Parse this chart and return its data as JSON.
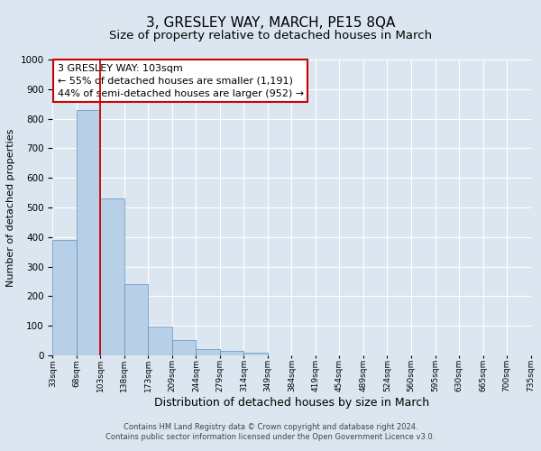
{
  "title": "3, GRESLEY WAY, MARCH, PE15 8QA",
  "subtitle": "Size of property relative to detached houses in March",
  "xlabel": "Distribution of detached houses by size in March",
  "ylabel": "Number of detached properties",
  "bin_labels": [
    "33sqm",
    "68sqm",
    "103sqm",
    "138sqm",
    "173sqm",
    "209sqm",
    "244sqm",
    "279sqm",
    "314sqm",
    "349sqm",
    "384sqm",
    "419sqm",
    "454sqm",
    "489sqm",
    "524sqm",
    "560sqm",
    "595sqm",
    "630sqm",
    "665sqm",
    "700sqm",
    "735sqm"
  ],
  "bar_heights": [
    390,
    830,
    530,
    240,
    97,
    52,
    22,
    14,
    10,
    0,
    0,
    0,
    0,
    0,
    0,
    0,
    0,
    0,
    0,
    0
  ],
  "bar_color": "#b8cfe8",
  "bar_edge_color": "#6090c0",
  "vline_color": "#cc0000",
  "annotation_box_text": "3 GRESLEY WAY: 103sqm\n← 55% of detached houses are smaller (1,191)\n44% of semi-detached houses are larger (952) →",
  "annotation_box_edge_color": "#cc0000",
  "ylim": [
    0,
    1000
  ],
  "yticks": [
    0,
    100,
    200,
    300,
    400,
    500,
    600,
    700,
    800,
    900,
    1000
  ],
  "background_color": "#dce6f0",
  "plot_background": "#dce6f0",
  "footer_line1": "Contains HM Land Registry data © Crown copyright and database right 2024.",
  "footer_line2": "Contains public sector information licensed under the Open Government Licence v3.0.",
  "grid_color": "#ffffff",
  "title_fontsize": 11,
  "subtitle_fontsize": 9.5,
  "xlabel_fontsize": 9,
  "ylabel_fontsize": 8,
  "annotation_fontsize": 8
}
